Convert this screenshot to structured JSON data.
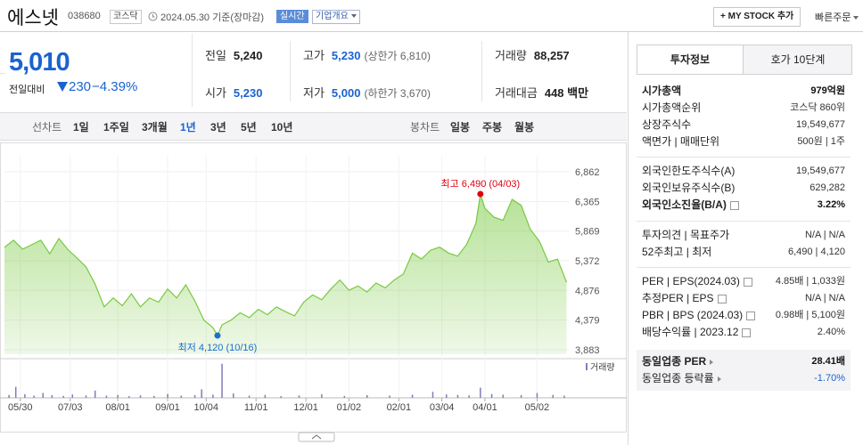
{
  "header": {
    "title": "에스넷",
    "code": "038680",
    "market": "코스닥",
    "date": "2024.05.30",
    "basis": "기준(장마감)",
    "realtime": "실시간",
    "overview": "기업개요",
    "mystock": "+ MY STOCK 추가",
    "quick_order": "빠른주문"
  },
  "quote": {
    "price": "5,010",
    "change_label": "전일대비",
    "change": "230",
    "change_rate": "−4.39%",
    "color": "#1a63cf",
    "stats": [
      {
        "label": "전일",
        "value": "5,240"
      },
      {
        "label": "고가",
        "value": "5,230",
        "note": "(상한가 6,810)",
        "color": "#1a63cf"
      },
      {
        "label": "거래량",
        "value": "88,257"
      },
      {
        "label": "시가",
        "value": "5,230",
        "color": "#1a63cf"
      },
      {
        "label": "저가",
        "value": "5,000",
        "note": "(하한가 3,670)",
        "color": "#1a63cf"
      },
      {
        "label": "거래대금",
        "value": "448 백만"
      }
    ]
  },
  "tabs": {
    "line_label": "선차트",
    "periods": [
      "1일",
      "1주일",
      "3개월",
      "1년",
      "3년",
      "5년",
      "10년"
    ],
    "selected": 3,
    "candle_label": "봉차트",
    "candles": [
      "일봉",
      "주봉",
      "월봉"
    ]
  },
  "chart_data": {
    "type": "area",
    "series": [
      {
        "color": "#79c940",
        "x": [
          0,
          4,
          8,
          12,
          16,
          20,
          24,
          28,
          32,
          36,
          40,
          44,
          48,
          52,
          56,
          60,
          64,
          68,
          72,
          76,
          80,
          84,
          88,
          92,
          94,
          96,
          100,
          104,
          108,
          112,
          116,
          120,
          124,
          128,
          132,
          136,
          140,
          144,
          148,
          152,
          156,
          160,
          164,
          168,
          172,
          176,
          180,
          184,
          188,
          192,
          196,
          200,
          204,
          208,
          210,
          212,
          216,
          220,
          224,
          228,
          232,
          236,
          240,
          244,
          248
        ],
        "values": [
          5597,
          5716,
          5567,
          5641,
          5716,
          5490,
          5745,
          5560,
          5420,
          5270,
          4980,
          4600,
          4750,
          4620,
          4820,
          4600,
          4750,
          4680,
          4900,
          4750,
          4970,
          4700,
          4380,
          4250,
          4120,
          4300,
          4380,
          4500,
          4420,
          4560,
          4470,
          4600,
          4520,
          4450,
          4680,
          4800,
          4720,
          4900,
          5050,
          4880,
          4950,
          4850,
          5000,
          4920,
          5050,
          5150,
          5500,
          5400,
          5550,
          5600,
          5500,
          5450,
          5650,
          6000,
          6490,
          6250,
          6100,
          6050,
          6400,
          6300,
          5900,
          5700,
          5350,
          5400,
          5010
        ]
      }
    ],
    "volume": {
      "name": "거래량",
      "color": "#7d7fb8",
      "ylim": [
        0,
        1500000
      ],
      "x": [
        2,
        5,
        9,
        13,
        17,
        21,
        26,
        30,
        36,
        40,
        45,
        50,
        55,
        60,
        66,
        72,
        78,
        84,
        87,
        92,
        96,
        101,
        108,
        115,
        122,
        130,
        140,
        150,
        160,
        170,
        180,
        189,
        195,
        200,
        205,
        210,
        215,
        220,
        228,
        235,
        242,
        247
      ],
      "values": [
        120000,
        450000,
        150000,
        90000,
        200000,
        110000,
        80000,
        140000,
        100000,
        300000,
        90000,
        120000,
        70000,
        100000,
        80000,
        160000,
        90000,
        110000,
        350000,
        130000,
        1400000,
        180000,
        90000,
        120000,
        70000,
        100000,
        150000,
        80000,
        110000,
        90000,
        130000,
        250000,
        140000,
        120000,
        100000,
        420000,
        160000,
        130000,
        110000,
        200000,
        120000,
        90000
      ]
    },
    "xlim": [
      0,
      249
    ],
    "ylim": [
      3808,
      7130
    ],
    "yticks": [
      {
        "value": 6862,
        "label": "6,862"
      },
      {
        "value": 6365,
        "label": "6,365"
      },
      {
        "value": 5869,
        "label": "5,869"
      },
      {
        "value": 5372,
        "label": "5,372"
      },
      {
        "value": 4876,
        "label": "4,876"
      },
      {
        "value": 4379,
        "label": "4,379"
      },
      {
        "value": 3883,
        "label": "3,883"
      }
    ],
    "xticks": [
      {
        "value": 7,
        "label": "05/30"
      },
      {
        "value": 29,
        "label": "07/03"
      },
      {
        "value": 50,
        "label": "08/01"
      },
      {
        "value": 72,
        "label": "09/01"
      },
      {
        "value": 89,
        "label": "10/04"
      },
      {
        "value": 111,
        "label": "11/01"
      },
      {
        "value": 133,
        "label": "12/01"
      },
      {
        "value": 152,
        "label": "01/02"
      },
      {
        "value": 174,
        "label": "02/01"
      },
      {
        "value": 193,
        "label": "03/04"
      },
      {
        "value": 212,
        "label": "04/01"
      },
      {
        "value": 235,
        "label": "05/02"
      }
    ],
    "annotations": [
      {
        "text": "최고 6,490 (04/03)",
        "x": 210,
        "value": 6490,
        "color": "#e0000f"
      },
      {
        "text": "최저 4,120 (10/16)",
        "x": 94,
        "value": 4120,
        "color": "#1a6fd0"
      }
    ],
    "grid": true
  },
  "info": {
    "tabs": [
      "투자정보",
      "호가 10단계"
    ],
    "sections": [
      [
        {
          "label": "시가총액",
          "value": "979억원",
          "bold": true
        },
        {
          "label": "시가총액순위",
          "value": "코스닥 860위"
        },
        {
          "label": "상장주식수",
          "value": "19,549,677"
        },
        {
          "label": "액면가 | 매매단위",
          "value": "500원 | 1주"
        }
      ],
      [
        {
          "label": "외국인한도주식수(A)",
          "value": "19,549,677"
        },
        {
          "label": "외국인보유주식수(B)",
          "value": "629,282"
        },
        {
          "label": "외국인소진율(B/A)",
          "value": "3.22%",
          "bold": true,
          "help": true
        }
      ],
      [
        {
          "label": "투자의견 | 목표주가",
          "value": "N/A | N/A"
        },
        {
          "label": "52주최고 | 최저",
          "value": "6,490 | 4,120"
        }
      ],
      [
        {
          "label": "PER | EPS(2024.03)",
          "value": "4.85배 | 1,033원",
          "help": true
        },
        {
          "label": "추정PER | EPS",
          "value": "N/A | N/A",
          "help": true
        },
        {
          "label": "PBR | BPS (2024.03)",
          "value": "0.98배 | 5,100원",
          "help": true
        },
        {
          "label": "배당수익률 | 2023.12",
          "value": "2.40%",
          "help": true
        }
      ]
    ],
    "industry": [
      {
        "label": "동일업종 PER",
        "value": "28.41배",
        "bold": true
      },
      {
        "label": "동일업종 등락률",
        "value": "-1.70%",
        "color": "#1a63cf"
      }
    ]
  }
}
